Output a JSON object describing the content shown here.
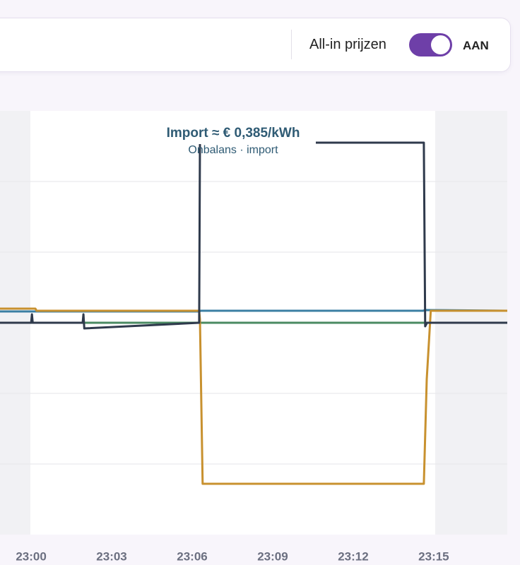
{
  "header": {
    "toggle_label": "All-in prijzen",
    "toggle_state": "AAN"
  },
  "chart_data": {
    "type": "line",
    "annotation": {
      "title": "Import ≈ € 0,385/kWh",
      "subtitle": "Onbalans · import"
    },
    "xlim": [
      -1.16,
      17.74
    ],
    "xticks": [
      {
        "value": 0,
        "label": "23:00"
      },
      {
        "value": 3,
        "label": "23:03"
      },
      {
        "value": 6,
        "label": "23:06"
      },
      {
        "value": 9,
        "label": "23:09"
      },
      {
        "value": 12,
        "label": "23:12"
      },
      {
        "value": 15,
        "label": "23:15"
      }
    ],
    "ylim": [
      -3,
      3
    ],
    "yticks": [
      -2,
      -1,
      0,
      1,
      2
    ],
    "grid": true,
    "series": [
      {
        "color": "#4a8a62",
        "x": [
          -1.16,
          17.74
        ],
        "values": [
          0,
          0
        ]
      },
      {
        "color": "#3b7fa3",
        "x": [
          -1.16,
          6.26,
          6.32,
          14.6,
          14.7,
          17.74
        ],
        "values": [
          0.16,
          0.16,
          0.17,
          0.17,
          0.18,
          0.17
        ]
      },
      {
        "color": "#c8912f",
        "x": [
          -1.16,
          0.16,
          0.2,
          6.26,
          6.29,
          6.39,
          14.63,
          14.74,
          14.89,
          17.74
        ],
        "values": [
          0.2,
          0.2,
          0.17,
          0.17,
          0.05,
          -2.28,
          -2.28,
          -0.8,
          0.17,
          0.17
        ]
      },
      {
        "color": "#2f3a4c",
        "x": [
          -1.16,
          0.0,
          0.03,
          0.06,
          1.92,
          1.95,
          1.98,
          6.26,
          6.29,
          14.63,
          14.68,
          14.75,
          17.74
        ],
        "values": [
          0,
          0,
          0.12,
          0,
          0,
          0.12,
          -0.08,
          0,
          2.55,
          2.55,
          -0.05,
          0,
          0
        ]
      }
    ]
  }
}
